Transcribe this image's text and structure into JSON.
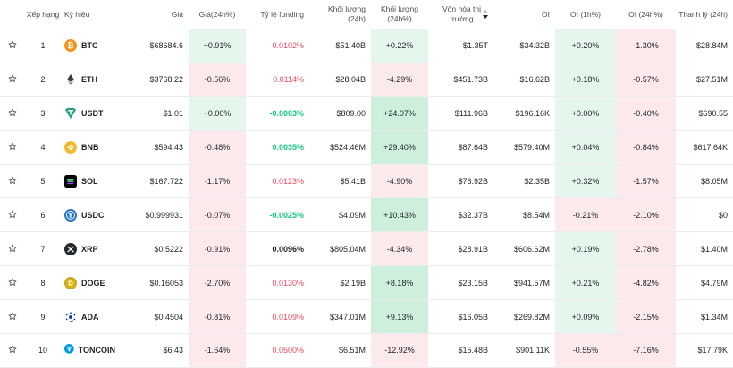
{
  "headers": {
    "rank": "Xếp hạng",
    "symbol": "Ký hiệu",
    "price": "Giá",
    "price_change": "Giá(24h%)",
    "funding": "Tỷ lệ funding",
    "volume": "Khối lượng (24h)",
    "volume_change": "Khối lượng (24h%)",
    "mcap_line1": "Vốn hóa thị",
    "mcap_line2": "trường",
    "oi": "OI",
    "oi_1h": "OI (1h%)",
    "oi_24h": "OI (24h%)",
    "liq": "Thanh lý (24h)"
  },
  "rows": [
    {
      "rank": "1",
      "symbol": "BTC",
      "price": "$68684.6",
      "price_change": "+0.91%",
      "funding": "0.0102%",
      "volume": "$51.40B",
      "volume_change": "+0.22%",
      "mcap": "$1.35T",
      "oi": "$34.32B",
      "oi_1h": "+0.20%",
      "oi_24h": "-1.30%",
      "liq": "$28.84M"
    },
    {
      "rank": "2",
      "symbol": "ETH",
      "price": "$3768.22",
      "price_change": "-0.56%",
      "funding": "0.0114%",
      "volume": "$28.04B",
      "volume_change": "-4.29%",
      "mcap": "$451.73B",
      "oi": "$16.62B",
      "oi_1h": "+0.18%",
      "oi_24h": "-0.57%",
      "liq": "$27.51M"
    },
    {
      "rank": "3",
      "symbol": "USDT",
      "price": "$1.01",
      "price_change": "+0.00%",
      "funding": "-0.0003%",
      "volume": "$809.00",
      "volume_change": "+24.07%",
      "mcap": "$111.96B",
      "oi": "$196.16K",
      "oi_1h": "+0.00%",
      "oi_24h": "-0.40%",
      "liq": "$690.55"
    },
    {
      "rank": "4",
      "symbol": "BNB",
      "price": "$594.43",
      "price_change": "-0.48%",
      "funding": "0.0035%",
      "volume": "$524.46M",
      "volume_change": "+29.40%",
      "mcap": "$87.64B",
      "oi": "$579.40M",
      "oi_1h": "+0.04%",
      "oi_24h": "-0.84%",
      "liq": "$617.64K"
    },
    {
      "rank": "5",
      "symbol": "SOL",
      "price": "$167.722",
      "price_change": "-1.17%",
      "funding": "0.0123%",
      "volume": "$5.41B",
      "volume_change": "-4.90%",
      "mcap": "$76.92B",
      "oi": "$2.35B",
      "oi_1h": "+0.32%",
      "oi_24h": "-1.57%",
      "liq": "$8.05M"
    },
    {
      "rank": "6",
      "symbol": "USDC",
      "price": "$0.999931",
      "price_change": "-0.07%",
      "funding": "-0.0025%",
      "volume": "$4.09M",
      "volume_change": "+10.43%",
      "mcap": "$32.37B",
      "oi": "$8.54M",
      "oi_1h": "-0.21%",
      "oi_24h": "-2.10%",
      "liq": "$0"
    },
    {
      "rank": "7",
      "symbol": "XRP",
      "price": "$0.5222",
      "price_change": "-0.91%",
      "funding": "0.0096%",
      "volume": "$805.04M",
      "volume_change": "-4.34%",
      "mcap": "$28.91B",
      "oi": "$606.62M",
      "oi_1h": "+0.19%",
      "oi_24h": "-2.78%",
      "liq": "$1.40M"
    },
    {
      "rank": "8",
      "symbol": "DOGE",
      "price": "$0.16053",
      "price_change": "-2.70%",
      "funding": "0.0130%",
      "volume": "$2.19B",
      "volume_change": "+8.18%",
      "mcap": "$23.15B",
      "oi": "$941.57M",
      "oi_1h": "+0.21%",
      "oi_24h": "-4.82%",
      "liq": "$4.79M"
    },
    {
      "rank": "9",
      "symbol": "ADA",
      "price": "$0.4504",
      "price_change": "-0.81%",
      "funding": "0.0109%",
      "volume": "$347.01M",
      "volume_change": "+9.13%",
      "mcap": "$16.05B",
      "oi": "$269.82M",
      "oi_1h": "+0.09%",
      "oi_24h": "-2.15%",
      "liq": "$1.34M"
    },
    {
      "rank": "10",
      "symbol": "TONCOIN",
      "price": "$6.43",
      "price_change": "-1.64%",
      "funding": "0.0500%",
      "volume": "$6.51M",
      "volume_change": "-12.92%",
      "mcap": "$15.48B",
      "oi": "$901.11K",
      "oi_1h": "-0.55%",
      "oi_24h": "-7.16%",
      "liq": "$17.79K"
    }
  ],
  "icons": {
    "BTC": "btc-icon",
    "ETH": "eth-icon",
    "USDT": "usdt-icon",
    "BNB": "bnb-icon",
    "SOL": "sol-icon",
    "USDC": "usdc-icon",
    "XRP": "xrp-icon",
    "DOGE": "doge-icon",
    "ADA": "ada-icon",
    "TONCOIN": "ton-icon"
  },
  "colors": {
    "positive_bg": "#e5f6ec",
    "negative_bg": "#fce9eb",
    "strong_positive_bg": "#cdefdc",
    "funding_negative": "#f6465d",
    "funding_positive": "#0ecb81"
  }
}
